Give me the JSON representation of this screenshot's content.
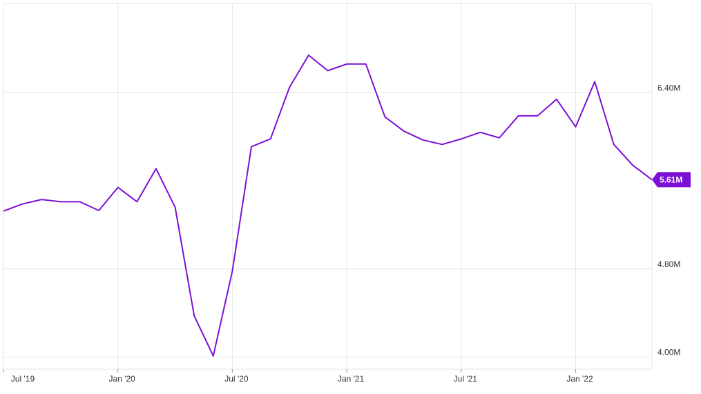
{
  "chart_data": {
    "type": "line",
    "categories": [
      "Jul '19",
      null,
      null,
      null,
      null,
      null,
      "Jan '20",
      null,
      null,
      null,
      null,
      null,
      "Jul '20",
      null,
      null,
      null,
      null,
      null,
      "Jan '21",
      null,
      null,
      null,
      null,
      null,
      "Jul '21",
      null,
      null,
      null,
      null,
      null,
      "Jan '22",
      null,
      null,
      null,
      null
    ],
    "series": [
      {
        "color": "#7b0fd6",
        "values": [
          5.325,
          5.39,
          5.43,
          5.41,
          5.41,
          5.33,
          5.54,
          5.41,
          5.71,
          5.36,
          4.375,
          4.01,
          4.78,
          5.91,
          5.98,
          6.45,
          6.74,
          6.6,
          6.66,
          6.66,
          6.18,
          6.05,
          5.97,
          5.93,
          5.98,
          6.04,
          5.99,
          6.19,
          6.19,
          6.34,
          6.09,
          6.5,
          5.93,
          5.74,
          5.61
        ],
        "value_labels": [
          null,
          null,
          null,
          null,
          null,
          null,
          null,
          null,
          null,
          null,
          null,
          null,
          null,
          null,
          null,
          null,
          null,
          null,
          null,
          null,
          null,
          null,
          null,
          null,
          null,
          null,
          null,
          null,
          null,
          null,
          null,
          null,
          null,
          null,
          "5.61M"
        ]
      }
    ],
    "ylim": [
      3.89,
      7.21
    ],
    "yticks": [
      {
        "value": 4,
        "label": "4.00M"
      },
      {
        "value": 4.8,
        "label": "4.80M"
      },
      {
        "value": 6.4,
        "label": "6.40M"
      }
    ],
    "grid": true
  }
}
